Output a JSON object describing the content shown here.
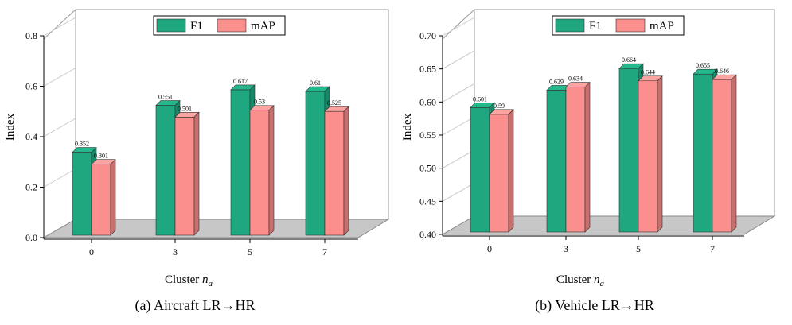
{
  "colors": {
    "f1": "#1fa77f",
    "f1_top": "#23b98d",
    "f1_side": "#158a68",
    "map": "#fb8f8d",
    "map_top": "#fca4a2",
    "map_side": "#c96f6e",
    "floor": "#c7c7c7"
  },
  "chart_data": [
    {
      "type": "bar",
      "caption": "(a) Aircraft LR→HR",
      "xlabel": "Cluster ",
      "xlabel_sub": "a",
      "xlabel_var": "n",
      "ylabel": "Index",
      "ylim": [
        0,
        0.8
      ],
      "yticks": [
        "0.0",
        "0.2",
        "0.4",
        "0.6",
        "0.8"
      ],
      "categories": [
        "0",
        "3",
        "5",
        "7"
      ],
      "series": [
        {
          "name": "F1",
          "values": [
            0.352,
            0.551,
            0.617,
            0.61
          ],
          "labels": [
            "0.352",
            "0.551",
            "0.617",
            "0.61"
          ]
        },
        {
          "name": "mAP",
          "values": [
            0.301,
            0.501,
            0.53,
            0.525
          ],
          "labels": [
            "0.301",
            "0.501",
            "0.53",
            "0.525"
          ]
        }
      ],
      "legend": "top-center"
    },
    {
      "type": "bar",
      "caption": "(b) Vehicle LR→HR",
      "xlabel": "Cluster ",
      "xlabel_sub": "a",
      "xlabel_var": "n",
      "ylabel": "Index",
      "ylim": [
        0.4,
        0.7
      ],
      "yticks": [
        "0.40",
        "0.45",
        "0.50",
        "0.55",
        "0.60",
        "0.65",
        "0.70"
      ],
      "categories": [
        "0",
        "3",
        "5",
        "7"
      ],
      "series": [
        {
          "name": "F1",
          "values": [
            0.601,
            0.629,
            0.664,
            0.655
          ],
          "labels": [
            "0.601",
            "0.629",
            "0.664",
            "0.655"
          ]
        },
        {
          "name": "mAP",
          "values": [
            0.59,
            0.634,
            0.644,
            0.646
          ],
          "labels": [
            "0.59",
            "0.634",
            "0.644",
            "0.646"
          ]
        }
      ],
      "legend": "top-center"
    }
  ]
}
